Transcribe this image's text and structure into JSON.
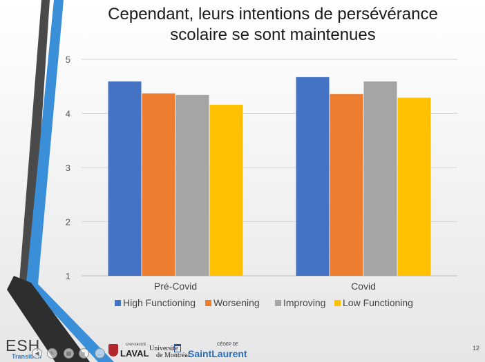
{
  "slide": {
    "title_line1": "Cependant, leurs intentions de persévérance",
    "title_line2": "scolaire se sont maintenues",
    "number": "12"
  },
  "branding": {
    "esh": "ESH",
    "transition": "Transition",
    "laval_small": "UNIVERSITÉ",
    "laval": "LAVAL",
    "udem_line1": "Université",
    "udem_line2": "de Montréal",
    "cegep_small": "CÉGEP DE",
    "saint_laurent": "SaintLaurent"
  },
  "colors": {
    "high_functioning": "#4472C4",
    "worsening": "#ED7D31",
    "improving": "#A5A5A5",
    "low_functioning": "#FFC000"
  },
  "chart_data": {
    "type": "bar",
    "title": "",
    "xlabel": "",
    "ylabel": "",
    "categories": [
      "Pré-Covid",
      "Covid"
    ],
    "series": [
      {
        "name": "High Functioning",
        "values": [
          4.59,
          4.67
        ]
      },
      {
        "name": "Worsening",
        "values": [
          4.37,
          4.36
        ]
      },
      {
        "name": "Improving",
        "values": [
          4.34,
          4.59
        ]
      },
      {
        "name": "Low Functioning",
        "values": [
          4.16,
          4.29
        ]
      }
    ],
    "ylim": [
      1,
      5
    ],
    "yticks": [
      "1",
      "2",
      "3",
      "4",
      "5"
    ],
    "grid": true,
    "legend": "bottom"
  }
}
